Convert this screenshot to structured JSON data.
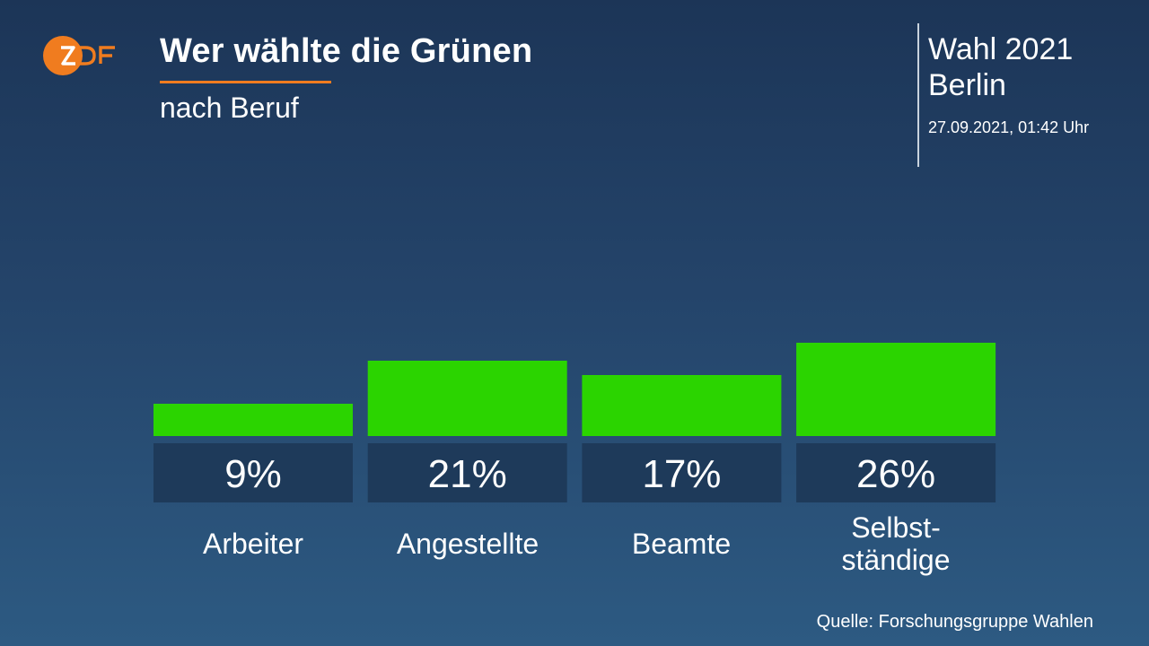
{
  "header": {
    "title": "Wer wählte die Grünen",
    "subtitle": "nach Beruf",
    "logo_text": "ZDF"
  },
  "side": {
    "line1": "Wahl 2021",
    "line2": "Berlin",
    "timestamp": "27.09.2021, 01:42 Uhr"
  },
  "footer": {
    "source": "Quelle: Forschungsgruppe Wahlen"
  },
  "colors": {
    "bar": "#2bd400",
    "label_box": "#1e3a5a",
    "accent": "#f07c1f"
  },
  "chart_data": {
    "type": "bar",
    "categories": [
      "Arbeiter",
      "Angestellte",
      "Beamte",
      "Selbstständige"
    ],
    "category_display": [
      "Arbeiter",
      "Angestellte",
      "Beamte",
      "Selbst-\nständige"
    ],
    "values": [
      9,
      21,
      17,
      26
    ],
    "value_labels": [
      "9%",
      "21%",
      "17%",
      "26%"
    ],
    "unit": "%",
    "grid": false,
    "legend": "none"
  }
}
